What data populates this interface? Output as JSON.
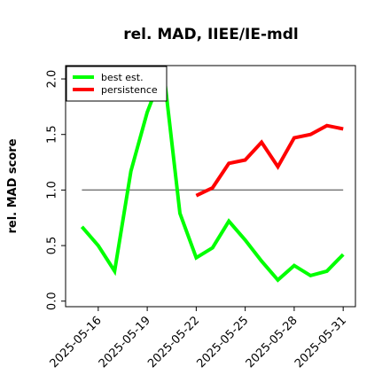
{
  "chart_data": {
    "type": "line",
    "title": "rel. MAD, IIEE/IE-mdl",
    "xlabel": "",
    "ylabel": "rel. MAD score",
    "x": [
      "2025-05-15",
      "2025-05-16",
      "2025-05-17",
      "2025-05-18",
      "2025-05-19",
      "2025-05-20",
      "2025-05-21",
      "2025-05-22",
      "2025-05-23",
      "2025-05-24",
      "2025-05-25",
      "2025-05-26",
      "2025-05-27",
      "2025-05-28",
      "2025-05-29",
      "2025-05-30",
      "2025-05-31"
    ],
    "x_ticks": [
      "2025-05-16",
      "2025-05-19",
      "2025-05-22",
      "2025-05-25",
      "2025-05-28",
      "2025-05-31"
    ],
    "xlim": [
      "2025-05-14",
      "2025-05-31T18:00"
    ],
    "ylim": [
      -0.05,
      2.12
    ],
    "y_ticks": [
      "0.0",
      "0.5",
      "1.0",
      "1.5",
      "2.0"
    ],
    "reference_line": 1.0,
    "series": [
      {
        "name": "best est.",
        "color": "#00ff00",
        "values": [
          0.67,
          0.5,
          0.27,
          1.17,
          1.7,
          2.08,
          0.79,
          0.39,
          0.48,
          0.72,
          0.55,
          0.36,
          0.19,
          0.32,
          0.23,
          0.27,
          0.42
        ]
      },
      {
        "name": "persistence",
        "color": "#ff0000",
        "values": [
          null,
          null,
          null,
          null,
          null,
          null,
          null,
          0.95,
          1.02,
          1.24,
          1.27,
          1.43,
          1.21,
          1.47,
          1.5,
          1.58,
          1.55
        ]
      }
    ],
    "legend": "top-left",
    "grid": false
  }
}
